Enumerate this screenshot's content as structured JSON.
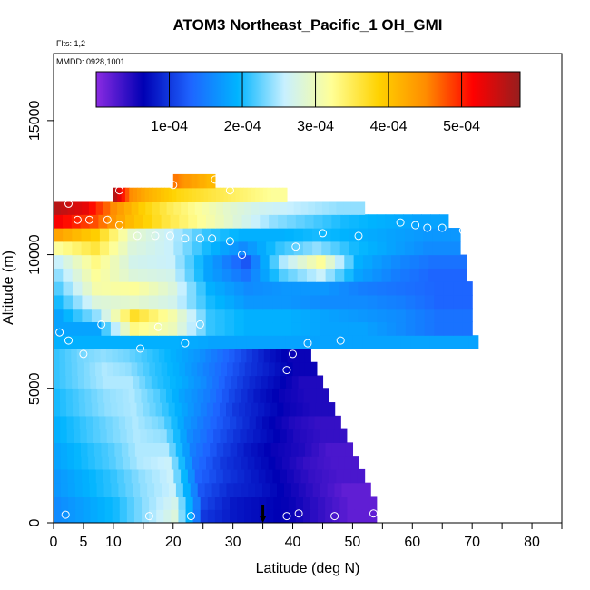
{
  "chart_data": {
    "type": "heatmap",
    "title": "ATOM3 Northeast_Pacific_1 OH_GMI",
    "flights_label": "Flts: 1,2",
    "dates_label": "MMDD: 0928,1001",
    "xlabel": "Latitude (deg N)",
    "ylabel": "Altitude (m)",
    "xlim": [
      0,
      85
    ],
    "ylim": [
      0,
      17500
    ],
    "x_ticks": [
      0,
      5,
      10,
      20,
      30,
      40,
      50,
      60,
      70,
      80
    ],
    "x_minor_ticks": [
      15,
      25,
      35,
      45,
      55,
      65,
      75,
      85
    ],
    "y_ticks": [
      0,
      5000,
      10000,
      15000
    ],
    "colorbar": {
      "range": [
        0,
        0.00058
      ],
      "ticks": [
        "1e-04",
        "2e-04",
        "3e-04",
        "4e-04",
        "5e-04"
      ],
      "tick_values": [
        0.0001,
        0.0002,
        0.0003,
        0.0004,
        0.0005
      ],
      "colors": [
        "#8b2be2",
        "#0000b4",
        "#1e64ff",
        "#00b4ff",
        "#c8f0ff",
        "#ffff96",
        "#ffd200",
        "#ff8c00",
        "#ff0000",
        "#961e1e"
      ]
    },
    "marker_latitude": 35,
    "layers": [
      {
        "alt": 250,
        "lat_min": 0,
        "lat_max": 54,
        "values": [
          0.00016,
          0.00018,
          0.0002,
          0.00024,
          0.00028,
          0.0001,
          8e-05,
          7e-05,
          6e-05,
          4e-05,
          2e-05
        ]
      },
      {
        "alt": 750,
        "lat_min": 0,
        "lat_max": 54,
        "values": [
          0.00016,
          0.00018,
          0.0002,
          0.00024,
          0.00027,
          0.00011,
          8e-05,
          7e-05,
          6e-05,
          4e-05,
          2e-05
        ]
      },
      {
        "alt": 1250,
        "lat_min": 0,
        "lat_max": 53,
        "values": [
          0.00017,
          0.00019,
          0.00021,
          0.00024,
          0.00026,
          0.00012,
          9e-05,
          8e-05,
          6e-05,
          4e-05,
          2e-05
        ]
      },
      {
        "alt": 1750,
        "lat_min": 0,
        "lat_max": 52,
        "values": [
          0.00017,
          0.00019,
          0.00021,
          0.00024,
          0.00026,
          0.00013,
          0.0001,
          8e-05,
          6e-05,
          4e-05,
          3e-05
        ]
      },
      {
        "alt": 2250,
        "lat_min": 0,
        "lat_max": 51,
        "values": [
          0.00018,
          0.0002,
          0.00022,
          0.00025,
          0.00026,
          0.00014,
          0.0001,
          8e-05,
          6e-05,
          4e-05,
          3e-05
        ]
      },
      {
        "alt": 2750,
        "lat_min": 0,
        "lat_max": 50,
        "values": [
          0.00018,
          0.0002,
          0.00022,
          0.00025,
          0.00025,
          0.00015,
          0.00011,
          8e-05,
          6e-05,
          5e-05,
          3e-05
        ]
      },
      {
        "alt": 3250,
        "lat_min": 0,
        "lat_max": 49,
        "values": [
          0.00019,
          0.00021,
          0.00023,
          0.00025,
          0.00024,
          0.00016,
          0.00012,
          9e-05,
          7e-05,
          5e-05,
          4e-05
        ]
      },
      {
        "alt": 3750,
        "lat_min": 0,
        "lat_max": 48,
        "values": [
          0.00019,
          0.00021,
          0.00023,
          0.00025,
          0.00023,
          0.00017,
          0.00013,
          0.0001,
          7e-05,
          5e-05,
          4e-05
        ]
      },
      {
        "alt": 4250,
        "lat_min": 0,
        "lat_max": 47,
        "values": [
          0.0002,
          0.00022,
          0.00024,
          0.00025,
          0.00022,
          0.00018,
          0.00014,
          0.0001,
          8e-05,
          6e-05,
          5e-05
        ]
      },
      {
        "alt": 4750,
        "lat_min": 0,
        "lat_max": 46,
        "values": [
          0.0002,
          0.00022,
          0.00024,
          0.00025,
          0.00022,
          0.00018,
          0.00015,
          0.00011,
          8e-05,
          6e-05,
          5e-05
        ]
      },
      {
        "alt": 5250,
        "lat_min": 0,
        "lat_max": 45,
        "values": [
          0.00021,
          0.00023,
          0.00025,
          0.00025,
          0.00021,
          0.00019,
          0.00016,
          0.00012,
          9e-05,
          7e-05,
          5e-05
        ]
      },
      {
        "alt": 5750,
        "lat_min": 0,
        "lat_max": 44,
        "values": [
          0.00021,
          0.00023,
          0.00025,
          0.00024,
          0.00021,
          0.00019,
          0.00016,
          0.00013,
          0.0001,
          8e-05,
          6e-05
        ]
      },
      {
        "alt": 6250,
        "lat_min": 0,
        "lat_max": 43,
        "values": [
          0.00021,
          0.00023,
          0.00024,
          0.00023,
          0.00021,
          0.00019,
          0.00017,
          0.00014,
          0.00011,
          8e-05,
          6e-05
        ]
      },
      {
        "alt": 6750,
        "lat_min": 0,
        "lat_max": 71,
        "values": [
          0.00019,
          0.00019,
          0.00019,
          0.00019,
          0.00018,
          0.00018,
          0.00018,
          0.00018,
          0.00018,
          0.00018,
          0.00018
        ]
      },
      {
        "alt": 7250,
        "lat_min": 0,
        "lat_max": 70,
        "values": [
          0.00018,
          0.00018,
          0.00033,
          0.0003,
          0.00021,
          0.00019,
          0.00019,
          0.00018,
          0.00018,
          0.00016,
          0.00014
        ]
      },
      {
        "alt": 7750,
        "lat_min": 0,
        "lat_max": 70,
        "values": [
          0.00018,
          0.00024,
          0.00037,
          0.00031,
          0.00021,
          0.00019,
          0.00019,
          0.00018,
          0.00017,
          0.00016,
          0.00014
        ]
      },
      {
        "alt": 8250,
        "lat_min": 0,
        "lat_max": 70,
        "values": [
          0.0002,
          0.00028,
          0.00029,
          0.00027,
          0.0002,
          0.00017,
          0.00017,
          0.00016,
          0.00016,
          0.00015,
          0.00013
        ]
      },
      {
        "alt": 8750,
        "lat_min": 0,
        "lat_max": 70,
        "values": [
          0.00022,
          0.00031,
          0.00032,
          0.00028,
          0.00019,
          0.00016,
          0.00017,
          0.00017,
          0.00015,
          0.00014,
          0.00013
        ]
      },
      {
        "alt": 9250,
        "lat_min": 0,
        "lat_max": 69,
        "values": [
          0.00024,
          0.00032,
          0.00028,
          0.00027,
          0.00018,
          0.00014,
          0.00022,
          0.00026,
          0.00018,
          0.00015,
          0.00013
        ]
      },
      {
        "alt": 9750,
        "lat_min": 0,
        "lat_max": 69,
        "values": [
          0.00026,
          0.00033,
          0.00027,
          0.00026,
          0.00018,
          0.00012,
          0.00025,
          0.00032,
          0.00019,
          0.00016,
          0.00014
        ]
      },
      {
        "alt": 10250,
        "lat_min": 0,
        "lat_max": 68,
        "values": [
          0.00032,
          0.00036,
          0.00028,
          0.00026,
          0.0002,
          0.00016,
          0.00021,
          0.00024,
          0.0002,
          0.00018,
          0.00016
        ]
      },
      {
        "alt": 10750,
        "lat_min": 0,
        "lat_max": 68,
        "values": [
          0.00043,
          0.00039,
          0.00029,
          0.00026,
          0.00021,
          0.00019,
          0.00019,
          0.0002,
          0.00019,
          0.00018,
          0.00017
        ]
      },
      {
        "alt": 11250,
        "lat_min": 0,
        "lat_max": 66,
        "values": [
          0.00052,
          0.00048,
          0.00041,
          0.00036,
          0.00032,
          0.00028,
          0.00024,
          0.00022,
          0.0002,
          0.00019,
          0.00018
        ]
      },
      {
        "alt": 11750,
        "lat_min": 0,
        "lat_max": 52,
        "values": [
          0.00056,
          0.00053,
          0.00045,
          0.00039,
          0.00035,
          0.00032,
          0.00029,
          0.00027,
          0.00026,
          0.00025,
          0.00024
        ]
      },
      {
        "alt": 12250,
        "lat_min": 10,
        "lat_max": 39,
        "values": [
          0.00056,
          0.00045,
          0.00042,
          0.0004,
          0.00038,
          0.00037,
          0.00036,
          0.00035,
          0.00034,
          0.00033,
          0.00032
        ]
      },
      {
        "alt": 12750,
        "lat_min": 20,
        "lat_max": 27,
        "values": [
          0.00046,
          0.00046,
          0.00045,
          0.00044,
          0.00044,
          0.00043,
          0.00043,
          0.00042,
          0.00042,
          0.00041,
          0.00041
        ]
      }
    ],
    "points": [
      {
        "x": 1,
        "y": 7100
      },
      {
        "x": 2.5,
        "y": 11900
      },
      {
        "x": 2.5,
        "y": 6800
      },
      {
        "x": 4,
        "y": 11300
      },
      {
        "x": 5,
        "y": 6300
      },
      {
        "x": 6,
        "y": 11300
      },
      {
        "x": 8,
        "y": 7400
      },
      {
        "x": 9,
        "y": 11300
      },
      {
        "x": 11,
        "y": 12400
      },
      {
        "x": 11,
        "y": 11100
      },
      {
        "x": 14,
        "y": 10700
      },
      {
        "x": 14.5,
        "y": 6500
      },
      {
        "x": 16,
        "y": 250
      },
      {
        "x": 17,
        "y": 10700
      },
      {
        "x": 17.5,
        "y": 7300
      },
      {
        "x": 19.5,
        "y": 10700
      },
      {
        "x": 20,
        "y": 12600
      },
      {
        "x": 22,
        "y": 10600
      },
      {
        "x": 22,
        "y": 6700
      },
      {
        "x": 23,
        "y": 250
      },
      {
        "x": 24.5,
        "y": 10600
      },
      {
        "x": 24.5,
        "y": 7400
      },
      {
        "x": 26.5,
        "y": 10600
      },
      {
        "x": 27,
        "y": 12800
      },
      {
        "x": 29.5,
        "y": 12400
      },
      {
        "x": 29.5,
        "y": 10500
      },
      {
        "x": 31.5,
        "y": 10000
      },
      {
        "x": 39,
        "y": 5700
      },
      {
        "x": 39,
        "y": 250
      },
      {
        "x": 40,
        "y": 6300
      },
      {
        "x": 40.5,
        "y": 10300
      },
      {
        "x": 41,
        "y": 350
      },
      {
        "x": 42.5,
        "y": 6700
      },
      {
        "x": 45,
        "y": 10800
      },
      {
        "x": 46,
        "y": 6000
      },
      {
        "x": 47,
        "y": 250
      },
      {
        "x": 48,
        "y": 6800
      },
      {
        "x": 51,
        "y": 10700
      },
      {
        "x": 53,
        "y": 5500
      },
      {
        "x": 53.5,
        "y": 350
      },
      {
        "x": 55.5,
        "y": 6100
      },
      {
        "x": 58,
        "y": 11200
      },
      {
        "x": 60.5,
        "y": 11100
      },
      {
        "x": 62.5,
        "y": 11000
      },
      {
        "x": 65,
        "y": 11000
      },
      {
        "x": 68.5,
        "y": 10900
      },
      {
        "x": 71,
        "y": 6200
      },
      {
        "x": 2,
        "y": 300
      }
    ]
  }
}
